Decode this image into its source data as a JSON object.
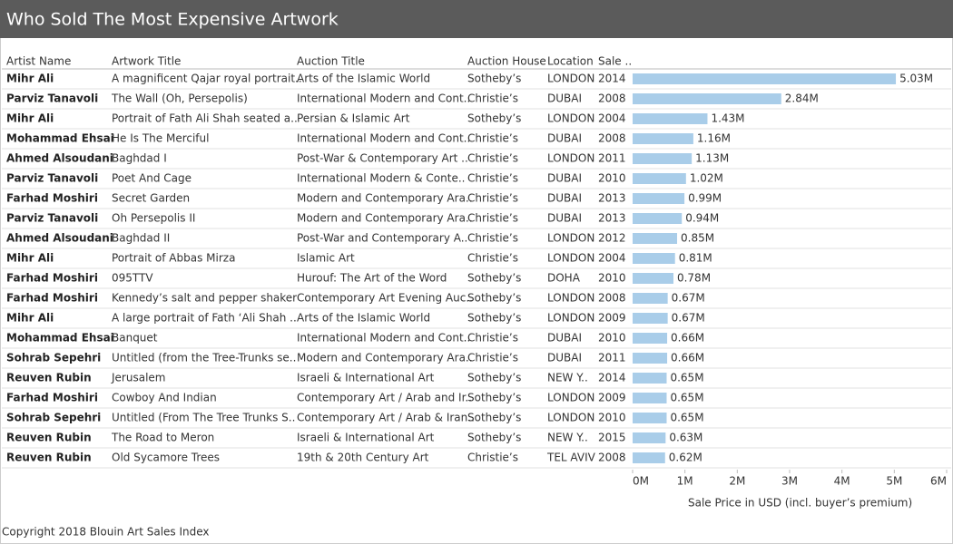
{
  "chart_data": {
    "type": "bar",
    "title": "Who Sold The Most Expensive Artwork",
    "columns": [
      "Artist Name",
      "Artwork Title",
      "Auction Title",
      "Auction House",
      "Location",
      "Sale .."
    ],
    "rows": [
      [
        "Mihr Ali",
        "A magnificent Qajar royal portrait..",
        "Arts of the Islamic World",
        "Sotheby’s",
        "LONDON",
        "2014"
      ],
      [
        "Parviz Tanavoli",
        "The Wall (Oh, Persepolis)",
        "International Modern and Cont..",
        "Christie’s",
        "DUBAI",
        "2008"
      ],
      [
        "Mihr Ali",
        "Portrait of Fath Ali Shah seated a..",
        "Persian & Islamic Art",
        "Sotheby’s",
        "LONDON",
        "2004"
      ],
      [
        "Mohammad Ehsai",
        "He Is The Merciful",
        "International Modern and Cont..",
        "Christie’s",
        "DUBAI",
        "2008"
      ],
      [
        "Ahmed Alsoudani",
        "Baghdad I",
        "Post-War & Contemporary Art ..",
        "Christie’s",
        "LONDON",
        "2011"
      ],
      [
        "Parviz Tanavoli",
        "Poet And Cage",
        "International Modern & Conte..",
        "Christie’s",
        "DUBAI",
        "2010"
      ],
      [
        "Farhad Moshiri",
        "Secret Garden",
        "Modern and Contemporary Ara..",
        "Christie’s",
        "DUBAI",
        "2013"
      ],
      [
        "Parviz Tanavoli",
        "Oh Persepolis II",
        "Modern and Contemporary Ara..",
        "Christie’s",
        "DUBAI",
        "2013"
      ],
      [
        "Ahmed Alsoudani",
        "Baghdad II",
        "Post-War and Contemporary A..",
        "Christie’s",
        "LONDON",
        "2012"
      ],
      [
        "Mihr Ali",
        "Portrait of Abbas Mirza",
        "Islamic Art",
        "Christie’s",
        "LONDON",
        "2004"
      ],
      [
        "Farhad Moshiri",
        "095TTV",
        "Hurouf: The Art of the Word",
        "Sotheby’s",
        "DOHA",
        "2010"
      ],
      [
        "Farhad Moshiri",
        "Kennedy’s salt and pepper shaker",
        "Contemporary Art Evening Auc..",
        "Sotheby’s",
        "LONDON",
        "2008"
      ],
      [
        "Mihr Ali",
        "A large portrait of Fath ‘Ali Shah ..",
        "Arts of the Islamic World",
        "Sotheby’s",
        "LONDON",
        "2009"
      ],
      [
        "Mohammad Ehsai",
        "Banquet",
        "International Modern and Cont..",
        "Christie’s",
        "DUBAI",
        "2010"
      ],
      [
        "Sohrab Sepehri",
        "Untitled (from the Tree-Trunks se..",
        "Modern and Contemporary Ara..",
        "Christie’s",
        "DUBAI",
        "2011"
      ],
      [
        "Reuven Rubin",
        "Jerusalem",
        "Israeli & International Art",
        "Sotheby’s",
        "NEW Y..",
        "2014"
      ],
      [
        "Farhad Moshiri",
        "Cowboy And Indian",
        "Contemporary Art / Arab and Ir..",
        "Sotheby’s",
        "LONDON",
        "2009"
      ],
      [
        "Sohrab Sepehri",
        "Untitled (From The Tree Trunks S..",
        "Contemporary Art / Arab & Iran..",
        "Sotheby’s",
        "LONDON",
        "2010"
      ],
      [
        "Reuven Rubin",
        "The Road to Meron",
        "Israeli & International Art",
        "Sotheby’s",
        "NEW Y..",
        "2015"
      ],
      [
        "Reuven Rubin",
        "Old Sycamore Trees",
        "19th & 20th Century Art",
        "Christie’s",
        "TEL AVIV",
        "2008"
      ]
    ],
    "values": [
      5030000,
      2840000,
      1430000,
      1160000,
      1130000,
      1020000,
      990000,
      940000,
      850000,
      810000,
      780000,
      670000,
      670000,
      660000,
      660000,
      650000,
      650000,
      650000,
      630000,
      620000
    ],
    "value_labels": [
      "5.03M",
      "2.84M",
      "1.43M",
      "1.16M",
      "1.13M",
      "1.02M",
      "0.99M",
      "0.94M",
      "0.85M",
      "0.81M",
      "0.78M",
      "0.67M",
      "0.67M",
      "0.66M",
      "0.66M",
      "0.65M",
      "0.65M",
      "0.65M",
      "0.63M",
      "0.62M"
    ],
    "color": "#a9cde9",
    "xlim": [
      0,
      6000000
    ],
    "xticks": [
      {
        "value": 0,
        "label": "0M"
      },
      {
        "value": 1000000,
        "label": "1M"
      },
      {
        "value": 2000000,
        "label": "2M"
      },
      {
        "value": 3000000,
        "label": "3M"
      },
      {
        "value": 4000000,
        "label": "4M"
      },
      {
        "value": 5000000,
        "label": "5M"
      },
      {
        "value": 6000000,
        "label": "6M"
      }
    ],
    "xlabel": "Sale Price in USD (incl. buyer’s premium)"
  },
  "footer": "Copyright 2018 Blouin Art Sales Index"
}
